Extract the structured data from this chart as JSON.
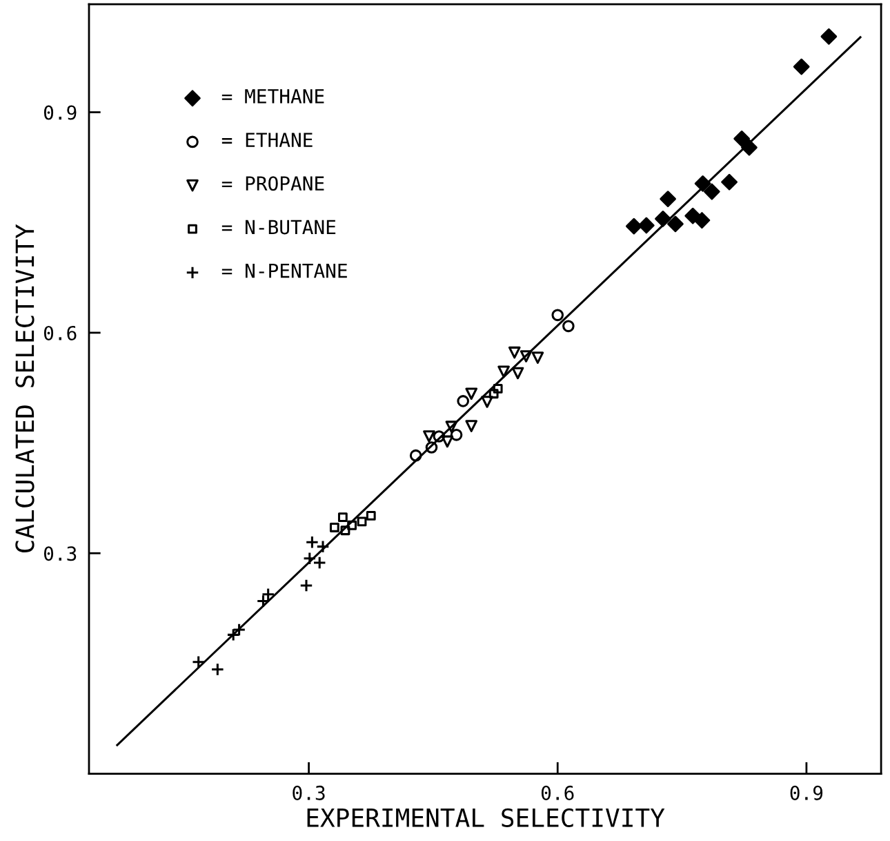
{
  "chart_data": {
    "type": "scatter",
    "xlabel": "EXPERIMENTAL SELECTIVITY",
    "ylabel": "CALCULATED SELECTIVITY",
    "xlim": [
      0.035,
      0.99
    ],
    "ylim": [
      0,
      1.047
    ],
    "xticks": [
      {
        "value": 0.3,
        "label": "0.3"
      },
      {
        "value": 0.6,
        "label": "0.6"
      },
      {
        "value": 0.9,
        "label": "0.9"
      }
    ],
    "yticks": [
      {
        "value": 0.3,
        "label": "0.3"
      },
      {
        "value": 0.6,
        "label": "0.6"
      },
      {
        "value": 0.9,
        "label": "0.9"
      }
    ],
    "grid": false,
    "legend": "top left",
    "series": [
      {
        "name": "= METHANE",
        "color": "#000000",
        "marker": "diamond",
        "x": [
          0.927,
          0.894,
          0.822,
          0.831,
          0.807,
          0.775,
          0.786,
          0.733,
          0.692,
          0.707,
          0.727,
          0.742,
          0.763,
          0.774
        ],
        "values": [
          1.003,
          0.962,
          0.864,
          0.852,
          0.805,
          0.803,
          0.792,
          0.782,
          0.745,
          0.746,
          0.755,
          0.748,
          0.759,
          0.753
        ]
      },
      {
        "name": "= ETHANE",
        "color": "#000000",
        "marker": "circle",
        "x": [
          0.6,
          0.613,
          0.486,
          0.429,
          0.448,
          0.457,
          0.478
        ],
        "values": [
          0.624,
          0.609,
          0.507,
          0.433,
          0.444,
          0.459,
          0.461
        ]
      },
      {
        "name": "= PROPANE",
        "color": "#000000",
        "marker": "triangle",
        "x": [
          0.548,
          0.576,
          0.562,
          0.552,
          0.535,
          0.515,
          0.496,
          0.496,
          0.472,
          0.445,
          0.467
        ],
        "values": [
          0.573,
          0.566,
          0.568,
          0.545,
          0.547,
          0.506,
          0.517,
          0.473,
          0.472,
          0.459,
          0.452
        ]
      },
      {
        "name": "= N-BUTANE",
        "color": "#000000",
        "marker": "square",
        "x": [
          0.341,
          0.331,
          0.375,
          0.364,
          0.352,
          0.344,
          0.528,
          0.523
        ],
        "values": [
          0.349,
          0.335,
          0.351,
          0.343,
          0.338,
          0.331,
          0.524,
          0.517
        ]
      },
      {
        "name": "= N-PENTANE",
        "color": "#000000",
        "marker": "cross",
        "x": [
          0.304,
          0.301,
          0.313,
          0.317,
          0.297,
          0.251,
          0.245,
          0.216,
          0.209,
          0.167,
          0.19
        ],
        "values": [
          0.315,
          0.293,
          0.287,
          0.309,
          0.256,
          0.244,
          0.235,
          0.196,
          0.189,
          0.152,
          0.142
        ]
      },
      {
        "type": "line",
        "color": "#000000",
        "line_style": "solid",
        "x": [
          0.069,
          0.965
        ],
        "values": [
          0.039,
          1.002
        ]
      }
    ]
  }
}
